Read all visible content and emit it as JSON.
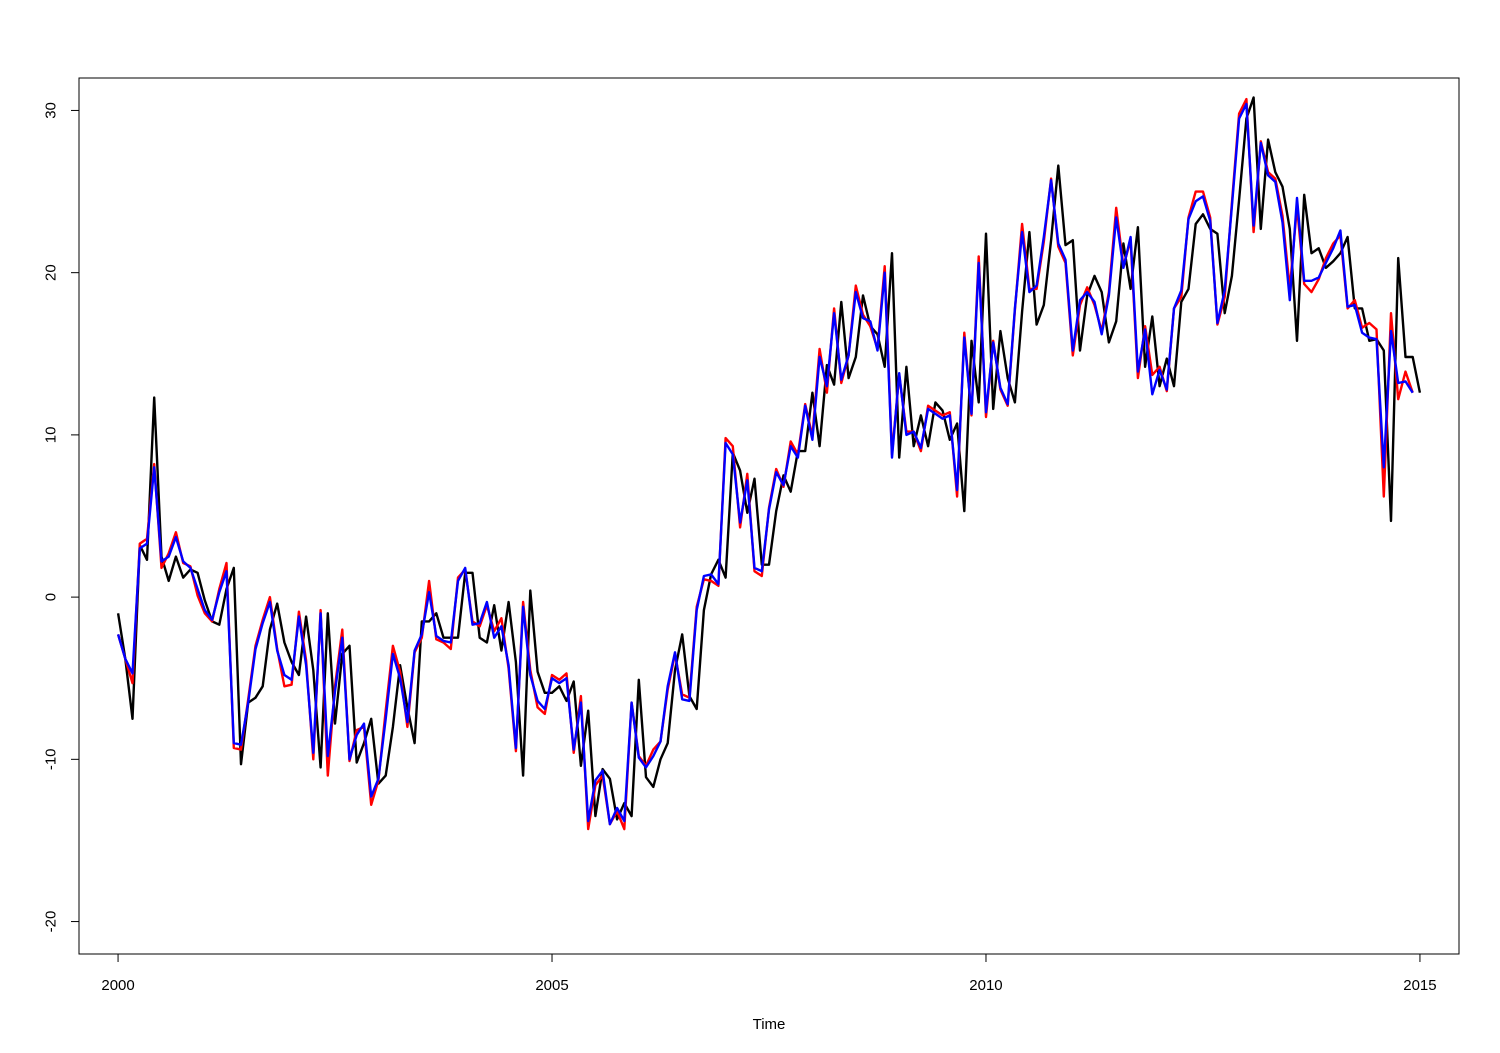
{
  "chart_data": {
    "type": "line",
    "title": "",
    "xlabel": "Time",
    "ylabel": "",
    "xlim": [
      1999.55,
      2015.45
    ],
    "ylim": [
      -22,
      32
    ],
    "x_ticks": [
      2000,
      2005,
      2010,
      2015
    ],
    "x_tick_labels": [
      "2000",
      "2005",
      "2010",
      "2015"
    ],
    "y_ticks": [
      -20,
      -10,
      0,
      10,
      20,
      30
    ],
    "y_tick_labels": [
      "-20",
      "-10",
      "0",
      "10",
      "20",
      "30"
    ],
    "grid": false,
    "legend": "none",
    "x": {
      "start": 2000,
      "frequency": 12
    },
    "series": [
      {
        "color": "#000000",
        "values": [
          -1,
          -3.8,
          -7.5,
          3.2,
          2.3,
          12.3,
          2.5,
          1,
          2.5,
          1.2,
          1.7,
          1.5,
          -0.2,
          -1.5,
          -1.7,
          0.5,
          1.8,
          -10.3,
          -6.5,
          -6.2,
          -5.5,
          -2,
          -0.4,
          -2.8,
          -4,
          -4.8,
          -1.2,
          -4.5,
          -10.5,
          -1,
          -7.8,
          -3.5,
          -3,
          -10.2,
          -9,
          -7.5,
          -11.5,
          -11,
          -8,
          -4.2,
          -6.8,
          -9,
          -1.5,
          -1.5,
          -1,
          -2.5,
          -2.5,
          -2.5,
          1.5,
          1.5,
          -2.5,
          -2.8,
          -0.5,
          -3.3,
          -0.3,
          -4,
          -11,
          0.4,
          -4.6,
          -5.9,
          -5.9,
          -5.5,
          -6.4,
          -5.2,
          -10.4,
          -7,
          -13.5,
          -10.6,
          -11.2,
          -13.7,
          -12.7,
          -13.5,
          -5.1,
          -11.1,
          -11.7,
          -10,
          -9,
          -4.5,
          -2.3,
          -6.1,
          -6.9,
          -0.8,
          1.4,
          2.3,
          1.2,
          8.9,
          7.8,
          5.2,
          7.3,
          2,
          2,
          5.3,
          7.5,
          6.5,
          9,
          9,
          12.6,
          9.3,
          14.3,
          13.1,
          18.2,
          13.5,
          14.8,
          18.6,
          16.7,
          16.2,
          14.2,
          21.2,
          8.6,
          14.2,
          9.3,
          11.2,
          9.3,
          12,
          11.5,
          9.7,
          10.7,
          5.3,
          15.8,
          12,
          22.4,
          11.6,
          16.4,
          13.5,
          12,
          17.6,
          22.5,
          16.8,
          18,
          22,
          26.6,
          21.7,
          22,
          15.2,
          18.6,
          19.8,
          18.8,
          15.7,
          17,
          21.8,
          19,
          22.8,
          14.2,
          17.3,
          13,
          14.7,
          13,
          18.2,
          19,
          23,
          23.6,
          22.7,
          22.4,
          17.5,
          19.8,
          24.5,
          29.5,
          30.8,
          22.7,
          28.2,
          26.2,
          25.3,
          22.7,
          15.8,
          24.8,
          21.2,
          21.5,
          20.3,
          20.7,
          21.2,
          22.2,
          17.8,
          17.8,
          15.8,
          15.9,
          15.2,
          4.7,
          20.9,
          14.8,
          14.8,
          12.6
        ]
      },
      {
        "color": "#ff0000",
        "values": [
          -2.3,
          -3.8,
          -5.3,
          3.3,
          3.6,
          8.2,
          1.8,
          2.7,
          4,
          2.1,
          1.9,
          0.1,
          -1,
          -1.5,
          0.5,
          2.1,
          -9.3,
          -9.4,
          -6.3,
          -3,
          -1.4,
          0,
          -3.2,
          -5.5,
          -5.4,
          -0.9,
          -3.9,
          -10,
          -0.8,
          -11,
          -5.5,
          -2,
          -10.1,
          -8.2,
          -8,
          -12.8,
          -11.3,
          -7,
          -3,
          -4.6,
          -8,
          -3.4,
          -2.5,
          1,
          -2.6,
          -2.8,
          -3.2,
          1.2,
          1.7,
          -1.5,
          -1.8,
          -0.5,
          -2.1,
          -1.3,
          -4.4,
          -9.5,
          -0.3,
          -4.5,
          -6.8,
          -7.2,
          -4.8,
          -5.1,
          -4.7,
          -9.6,
          -6.1,
          -14.3,
          -11.6,
          -11,
          -14,
          -13.2,
          -14.3,
          -6.5,
          -9.8,
          -10.4,
          -9.4,
          -8.9,
          -5.7,
          -3.5,
          -6,
          -6.2,
          -0.6,
          1.1,
          1,
          0.7,
          9.8,
          9.3,
          4.3,
          7.6,
          1.6,
          1.3,
          5.5,
          7.9,
          6.8,
          9.6,
          8.8,
          11.9,
          9.9,
          15.3,
          12.6,
          17.8,
          13.2,
          14.9,
          19.2,
          17.4,
          16.7,
          15.3,
          20.4,
          8.8,
          13.7,
          10.2,
          10.2,
          9,
          11.8,
          11.5,
          11.2,
          11.4,
          6.2,
          16.3,
          11.2,
          21,
          11.1,
          15.8,
          12.8,
          11.8,
          17.7,
          23,
          19,
          19,
          21.9,
          25.8,
          21.6,
          20.6,
          14.9,
          18,
          19.1,
          18,
          16.4,
          18.8,
          24,
          20.4,
          22,
          13.5,
          16.7,
          13.7,
          14.2,
          12.7,
          17.8,
          18.5,
          23.4,
          25,
          25,
          23.4,
          16.8,
          18.5,
          24.3,
          29.8,
          30.7,
          22.5,
          28.1,
          26.2,
          25.8,
          23.5,
          19,
          24.1,
          19.3,
          18.8,
          19.6,
          20.9,
          21.8,
          22.3,
          17.8,
          18.3,
          16.6,
          16.9,
          16.5,
          6.2,
          17.5,
          12.2,
          13.9,
          12.6
        ]
      },
      {
        "color": "#0000ff",
        "values": [
          -2.3,
          -3.8,
          -4.7,
          3,
          3.3,
          8,
          2.2,
          2.5,
          3.7,
          2.2,
          1.8,
          0.5,
          -0.8,
          -1.4,
          0.3,
          1.6,
          -9,
          -9.1,
          -6.5,
          -3.2,
          -1.6,
          -0.3,
          -3.3,
          -4.8,
          -5.1,
          -1.2,
          -4.2,
          -9.6,
          -1,
          -9.8,
          -5.8,
          -2.5,
          -10,
          -8.5,
          -7.8,
          -12.3,
          -11.2,
          -7.5,
          -3.5,
          -5,
          -7.7,
          -3.3,
          -2.3,
          0.3,
          -2.4,
          -2.7,
          -2.8,
          1,
          1.8,
          -1.7,
          -1.6,
          -0.3,
          -2.5,
          -1.8,
          -4.2,
          -9.3,
          -0.6,
          -4.8,
          -6.4,
          -6.9,
          -5,
          -5.3,
          -5,
          -9.4,
          -6.5,
          -13.8,
          -11.3,
          -10.7,
          -14,
          -13,
          -13.8,
          -6.5,
          -9.9,
          -10.5,
          -9.8,
          -8.9,
          -5.5,
          -3.4,
          -6.3,
          -6.4,
          -0.8,
          1.3,
          1.4,
          0.8,
          9.5,
          8.8,
          4.6,
          7.2,
          1.8,
          1.6,
          5.4,
          7.7,
          6.9,
          9.3,
          8.6,
          11.8,
          9.7,
          14.8,
          13,
          17.5,
          13.4,
          14.9,
          18.8,
          17.2,
          17,
          15.2,
          20,
          8.6,
          13.8,
          10,
          10.2,
          9.2,
          11.6,
          11.3,
          11,
          11.2,
          6.6,
          16,
          11.3,
          20.6,
          11.4,
          15.7,
          12.9,
          11.9,
          17.8,
          22.5,
          18.8,
          19.2,
          22.2,
          25.7,
          21.8,
          20.8,
          15.2,
          18.3,
          18.8,
          18.2,
          16.2,
          18.6,
          23.4,
          20.3,
          22.2,
          13.9,
          16.5,
          12.5,
          14,
          12.8,
          17.8,
          18.9,
          23.3,
          24.4,
          24.7,
          23.2,
          16.9,
          18.9,
          24.1,
          29.5,
          30.4,
          22.9,
          28,
          26,
          25.6,
          23.1,
          18.3,
          24.6,
          19.5,
          19.5,
          19.7,
          20.6,
          21.5,
          22.6,
          17.9,
          18,
          16.3,
          16,
          15.9,
          8,
          16.4,
          13.2,
          13.3,
          12.6
        ]
      }
    ]
  }
}
